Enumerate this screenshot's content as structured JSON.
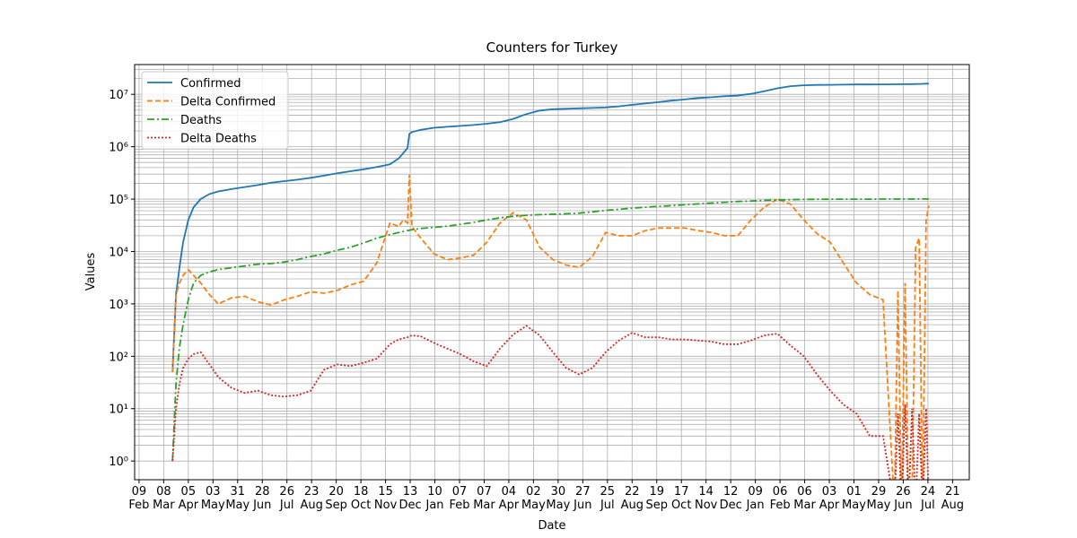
{
  "chart_data": {
    "type": "line",
    "title": "Counters for Turkey",
    "x_label": "Date",
    "y_label": "Values",
    "log_y": true,
    "grid": true,
    "legend": "upper left",
    "x": [
      38,
      42,
      46,
      50,
      56,
      62,
      70,
      80,
      90,
      105,
      120,
      135,
      150,
      165,
      180,
      195,
      210,
      225,
      240,
      255,
      270,
      285,
      295,
      300,
      305,
      307,
      310,
      320,
      335,
      350,
      365,
      380,
      395,
      410,
      425,
      440,
      455,
      470,
      485,
      500,
      515,
      530,
      545,
      560,
      575,
      590,
      605,
      620,
      635,
      650,
      665,
      680,
      695,
      710,
      725,
      740,
      755,
      770,
      785,
      800,
      815,
      830,
      845,
      858,
      862,
      866,
      870,
      874,
      878,
      882,
      886,
      890,
      894,
      897
    ],
    "series": [
      {
        "name": "Confirmed",
        "color": "#1f77b4",
        "linestyle": "solid",
        "values": [
          50,
          1500,
          5000,
          15000,
          40000,
          70000,
          100000,
          125000,
          140000,
          155000,
          170000,
          185000,
          205000,
          220000,
          235000,
          255000,
          280000,
          310000,
          340000,
          370000,
          410000,
          460000,
          600000,
          750000,
          950000,
          1750000,
          1900000,
          2100000,
          2300000,
          2400000,
          2500000,
          2600000,
          2750000,
          2950000,
          3400000,
          4200000,
          4900000,
          5200000,
          5300000,
          5400000,
          5500000,
          5600000,
          5900000,
          6300000,
          6700000,
          7100000,
          7600000,
          8000000,
          8500000,
          8800000,
          9200000,
          9500000,
          10200000,
          11500000,
          13000000,
          14300000,
          14900000,
          15100000,
          15200000,
          15300000,
          15400000,
          15450000,
          15500000,
          15550000,
          15550000,
          15600000,
          15600000,
          15650000,
          15700000,
          15750000,
          15800000,
          15850000,
          16000000,
          16000000
        ]
      },
      {
        "name": "Delta Confirmed",
        "color": "#ff7f0e",
        "linestyle": "dashed",
        "values": [
          50,
          1500,
          2500,
          3500,
          4500,
          3500,
          2500,
          1500,
          1000,
          1300,
          1400,
          1100,
          950,
          1200,
          1400,
          1700,
          1600,
          1800,
          2300,
          2700,
          6000,
          35000,
          30000,
          40000,
          35000,
          290000,
          30000,
          18000,
          9000,
          7000,
          7500,
          8500,
          15000,
          35000,
          55000,
          40000,
          12000,
          7000,
          5500,
          5000,
          8000,
          23000,
          20000,
          20000,
          25000,
          28000,
          28000,
          28000,
          25000,
          23000,
          20000,
          20000,
          40000,
          70000,
          100000,
          80000,
          40000,
          22000,
          15000,
          6000,
          2500,
          1500,
          1200,
          0,
          1800,
          0,
          2500,
          0,
          0,
          12000,
          18000,
          0,
          40000,
          75000
        ]
      },
      {
        "name": "Deaths",
        "color": "#2ca02c",
        "linestyle": "dashdot",
        "values": [
          1,
          30,
          150,
          400,
          1200,
          2500,
          3500,
          4100,
          4500,
          4900,
          5300,
          5700,
          5900,
          6300,
          7000,
          8000,
          9000,
          10500,
          12000,
          14500,
          18000,
          21000,
          23000,
          24000,
          25000,
          25500,
          26000,
          27500,
          29000,
          30500,
          33000,
          36000,
          40000,
          44000,
          47000,
          49000,
          50500,
          51500,
          52500,
          54000,
          57000,
          61000,
          64000,
          67000,
          70000,
          72500,
          75000,
          78000,
          81000,
          84000,
          87000,
          90000,
          92000,
          94500,
          96000,
          97500,
          98500,
          99000,
          99300,
          99600,
          99800,
          99900,
          100000,
          100100,
          100100,
          100200,
          100200,
          100300,
          100300,
          100400,
          100400,
          100500,
          100500,
          100500
        ]
      },
      {
        "name": "Delta Deaths",
        "color": "#d62728",
        "linestyle": "dotted",
        "values": [
          1,
          10,
          30,
          60,
          90,
          110,
          120,
          70,
          40,
          25,
          20,
          22,
          18,
          17,
          18,
          22,
          55,
          70,
          65,
          75,
          90,
          170,
          210,
          220,
          230,
          240,
          250,
          240,
          180,
          140,
          110,
          80,
          65,
          140,
          260,
          380,
          250,
          120,
          60,
          45,
          60,
          120,
          200,
          280,
          230,
          230,
          210,
          210,
          200,
          190,
          170,
          170,
          200,
          250,
          270,
          160,
          100,
          45,
          22,
          12,
          8,
          3,
          3,
          0,
          8,
          0,
          12,
          0,
          10,
          0,
          8,
          0,
          10,
          0
        ]
      }
    ],
    "xlim": [
      -5,
      943
    ],
    "xticks": [
      {
        "value": 0,
        "label": "09\nFeb"
      },
      {
        "value": 28,
        "label": "08\nMar"
      },
      {
        "value": 56,
        "label": "05\nApr"
      },
      {
        "value": 84,
        "label": "03\nMay"
      },
      {
        "value": 112,
        "label": "31\nMay"
      },
      {
        "value": 140,
        "label": "28\nJun"
      },
      {
        "value": 168,
        "label": "26\nJul"
      },
      {
        "value": 196,
        "label": "23\nAug"
      },
      {
        "value": 224,
        "label": "20\nSep"
      },
      {
        "value": 252,
        "label": "18\nOct"
      },
      {
        "value": 280,
        "label": "15\nNov"
      },
      {
        "value": 308,
        "label": "13\nDec"
      },
      {
        "value": 336,
        "label": "10\nJan"
      },
      {
        "value": 364,
        "label": "07\nFeb"
      },
      {
        "value": 392,
        "label": "07\nMar"
      },
      {
        "value": 420,
        "label": "04\nApr"
      },
      {
        "value": 448,
        "label": "02\nMay"
      },
      {
        "value": 476,
        "label": "30\nMay"
      },
      {
        "value": 504,
        "label": "27\nJun"
      },
      {
        "value": 532,
        "label": "25\nJul"
      },
      {
        "value": 560,
        "label": "22\nAug"
      },
      {
        "value": 588,
        "label": "19\nSep"
      },
      {
        "value": 616,
        "label": "17\nOct"
      },
      {
        "value": 644,
        "label": "14\nNov"
      },
      {
        "value": 672,
        "label": "12\nDec"
      },
      {
        "value": 700,
        "label": "09\nJan"
      },
      {
        "value": 728,
        "label": "06\nFeb"
      },
      {
        "value": 756,
        "label": "06\nMar"
      },
      {
        "value": 784,
        "label": "03\nApr"
      },
      {
        "value": 812,
        "label": "01\nMay"
      },
      {
        "value": 840,
        "label": "29\nMay"
      },
      {
        "value": 868,
        "label": "26\nJun"
      },
      {
        "value": 896,
        "label": "24\nJul"
      },
      {
        "value": 924,
        "label": "21\nAug"
      }
    ],
    "ylim": [
      0.44,
      37000000
    ],
    "yticks": [
      {
        "value": 1,
        "label": "10⁰"
      },
      {
        "value": 10,
        "label": "10¹"
      },
      {
        "value": 100,
        "label": "10²"
      },
      {
        "value": 1000,
        "label": "10³"
      },
      {
        "value": 10000,
        "label": "10⁴"
      },
      {
        "value": 100000,
        "label": "10⁵"
      },
      {
        "value": 1000000,
        "label": "10⁶"
      },
      {
        "value": 10000000,
        "label": "10⁷"
      }
    ]
  }
}
